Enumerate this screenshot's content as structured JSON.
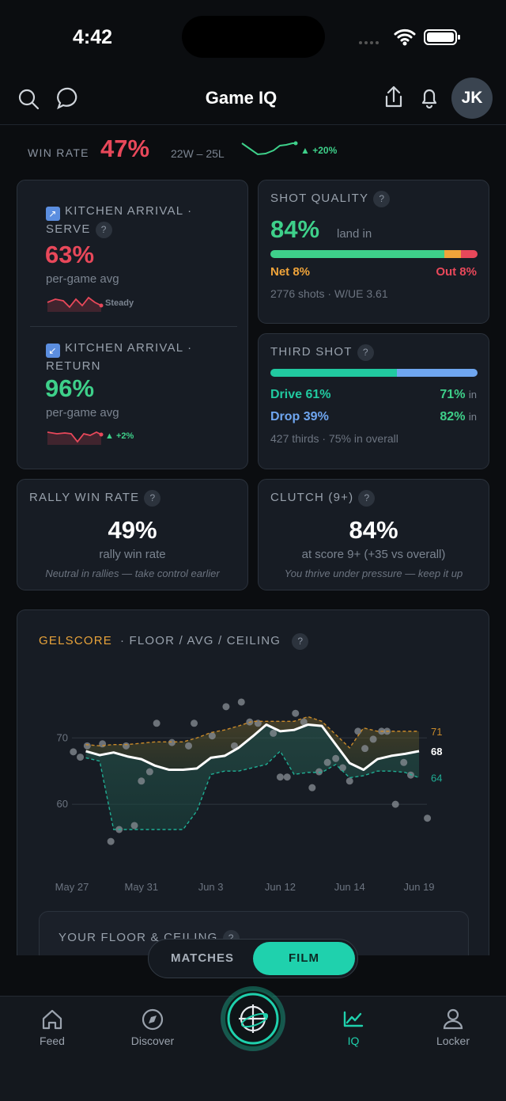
{
  "status_bar": {
    "time": "4:42"
  },
  "header": {
    "title": "Game IQ",
    "avatar": "JK"
  },
  "help": "?",
  "win_rate": {
    "label": "WIN RATE",
    "value": "47%",
    "record": "22W – 25L",
    "trend": "▲ +20%"
  },
  "kitchen_serve": {
    "title": "KITCHEN ARRIVAL · SERVE",
    "value": "63%",
    "subtitle": "per-game avg",
    "trend": "Steady"
  },
  "kitchen_return": {
    "title": "KITCHEN ARRIVAL · RETURN",
    "value": "96%",
    "subtitle": "per-game avg",
    "trend": "▲ +2%"
  },
  "shot_quality": {
    "title": "SHOT QUALITY",
    "land_in": {
      "value": 84,
      "label": "84%"
    },
    "land_in_text": "land in",
    "net": {
      "value": 8,
      "label": "Net 8%"
    },
    "out": {
      "value": 8,
      "label": "Out 8%"
    },
    "footer": "2776 shots · W/UE 3.61"
  },
  "third_shot": {
    "title": "THIRD SHOT",
    "in_word": "in",
    "drive": {
      "value": 61,
      "label": "Drive 61%",
      "in_rate": "71%"
    },
    "drop": {
      "value": 39,
      "label": "Drop 39%",
      "in_rate": "82%"
    },
    "footer": "427 thirds · 75% in overall"
  },
  "rally": {
    "title": "RALLY WIN RATE",
    "value": "49%",
    "subtitle": "rally win rate",
    "note": "Neutral in rallies — take control earlier"
  },
  "clutch": {
    "title": "CLUTCH (9+)",
    "value": "84%",
    "subtitle": "at score 9+ (+35 vs overall)",
    "note": "You thrive under pressure — keep it up"
  },
  "chart_data": {
    "type": "line",
    "title": "GELSCORE",
    "subtitle": "· FLOOR / AVG / CEILING",
    "x": [
      1,
      2,
      3,
      4,
      5,
      6,
      7,
      8,
      9,
      10,
      11,
      12,
      13,
      14,
      15,
      16,
      17,
      18,
      19,
      20,
      21,
      22,
      23,
      24,
      25
    ],
    "series": [
      {
        "color": "#c98a2a",
        "dashed": true,
        "values": [
          69,
          68.8,
          69,
          69,
          69.2,
          69.4,
          69.4,
          69.4,
          70,
          70.8,
          71.2,
          71.8,
          72.5,
          72.5,
          72.5,
          72.5,
          73.2,
          72.5,
          70.5,
          68.5,
          71.5,
          71,
          71,
          71,
          71
        ]
      },
      {
        "color": "#ffffff",
        "dashed": false,
        "values": [
          68,
          67.4,
          67.8,
          67.2,
          66.8,
          65.8,
          65.2,
          65.2,
          65.4,
          67,
          67.3,
          68.5,
          70.2,
          72,
          71,
          71.2,
          72,
          71.8,
          69,
          66.2,
          65.2,
          66.8,
          67.3,
          67.6,
          68
        ]
      },
      {
        "color": "#1fae94",
        "dashed": true,
        "values": [
          67,
          66.5,
          56.2,
          56.2,
          56.2,
          56.2,
          56.2,
          56.2,
          59,
          64.5,
          65,
          65,
          65.5,
          66,
          68,
          64.5,
          64.8,
          64.8,
          66,
          64,
          64.3,
          65,
          65,
          64.8,
          64
        ]
      }
    ],
    "points": {
      "color": "#8a8f96",
      "x": [
        0.1,
        0.6,
        1.1,
        2.2,
        2.8,
        3.4,
        3.9,
        4.5,
        5.0,
        5.6,
        6.1,
        7.2,
        8.4,
        8.8,
        10.1,
        11.1,
        11.7,
        12.2,
        12.8,
        13.4,
        14.5,
        15.0,
        15.5,
        16.1,
        16.7,
        17.3,
        17.8,
        18.4,
        19.0,
        19.5,
        20.0,
        20.6,
        21.1,
        21.7,
        22.3,
        22.7,
        23.3,
        23.9,
        24.4,
        25.6
      ],
      "y": [
        67.9,
        67.1,
        68.8,
        69.1,
        54.4,
        56.2,
        68.8,
        56.8,
        63.5,
        64.9,
        72.2,
        69.3,
        68.8,
        72.2,
        70.3,
        74.7,
        68.8,
        75.4,
        72.4,
        72.2,
        70.7,
        64.1,
        64.1,
        73.7,
        72.4,
        62.5,
        64.9,
        66.3,
        66.9,
        65.5,
        63.5,
        71.0,
        68.4,
        69.8,
        71.0,
        71.0,
        60.0,
        66.3,
        64.4,
        57.9
      ]
    },
    "xlim": [
      0,
      26
    ],
    "xticks": [
      {
        "value": 0,
        "label": "May 27"
      },
      {
        "value": 5,
        "label": "May 31"
      },
      {
        "value": 10,
        "label": "Jun 3"
      },
      {
        "value": 15,
        "label": "Jun 12"
      },
      {
        "value": 20,
        "label": "Jun 14"
      },
      {
        "value": 25,
        "label": "Jun 19"
      }
    ],
    "ylim": [
      50,
      81
    ],
    "yticks": [
      60,
      70
    ],
    "grid": true
  },
  "floor_ceiling": {
    "title": "YOUR FLOOR & CEILING"
  },
  "toggle": {
    "options": [
      "MATCHES",
      "FILM"
    ]
  },
  "nav": {
    "items": [
      "Feed",
      "Discover",
      "IQ",
      "Locker"
    ]
  }
}
